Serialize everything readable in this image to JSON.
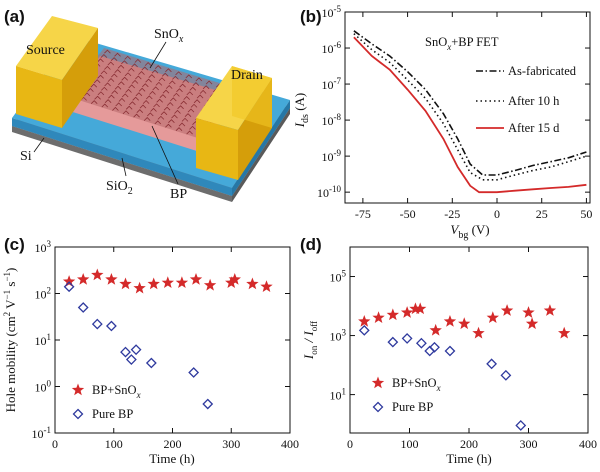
{
  "panels": {
    "a": {
      "label": "(a)",
      "labels": {
        "source": "Source",
        "drain": "Drain",
        "snox": "SnO",
        "snox_sub": "x",
        "si": "Si",
        "sio2": "SiO",
        "sio2_sub": "2",
        "bp": "BP"
      },
      "colors": {
        "electrode": "#f2c419",
        "substrate": "#45a9d9",
        "channel": "#e18a8a",
        "base": "#8b8b8b",
        "snox_film": "#b5676a"
      }
    },
    "b": {
      "label": "(b)",
      "title": "SnO",
      "title_sub": "x",
      "title_suffix": "+BP FET",
      "xlabel": "V",
      "xlabel_sub": "bg",
      "xlabel_unit": " (V)",
      "ylabel": "I",
      "ylabel_sub": "ds",
      "ylabel_unit": " (A)",
      "xticks": [
        "-75",
        "-50",
        "-25",
        "0",
        "25",
        "50"
      ],
      "yticks": [
        {
          "base": "10",
          "exp": "-5"
        },
        {
          "base": "10",
          "exp": "-6"
        },
        {
          "base": "10",
          "exp": "-7"
        },
        {
          "base": "10",
          "exp": "-8"
        },
        {
          "base": "10",
          "exp": "-9"
        },
        {
          "base": "10",
          "exp": "-10"
        }
      ],
      "legend": [
        "As-fabricated",
        "After 10 h",
        "After 15 d"
      ]
    },
    "c": {
      "label": "(c)",
      "ylabel": "Hole mobility (cm",
      "ylabel_sup1": "2",
      "ylabel_mid": " V",
      "ylabel_sup2": "−1",
      "ylabel_mid2": " s",
      "ylabel_sup3": "−1",
      "ylabel_end": ")",
      "xlabel": "Time (h)",
      "xticks": [
        "0",
        "100",
        "200",
        "300",
        "400"
      ],
      "yticks": [
        {
          "base": "10",
          "exp": "3"
        },
        {
          "base": "10",
          "exp": "2"
        },
        {
          "base": "10",
          "exp": "1"
        },
        {
          "base": "10",
          "exp": "0"
        },
        {
          "base": "10",
          "exp": "-1"
        }
      ],
      "legend": [
        "BP+SnO",
        "Pure BP"
      ],
      "legend_sub": "x"
    },
    "d": {
      "label": "(d)",
      "ylabel": "I",
      "ylabel_sub": "on",
      "ylabel_mid": " / I",
      "ylabel_sub2": "off",
      "xlabel": "Time (h)",
      "xticks": [
        "0",
        "100",
        "200",
        "300",
        "400"
      ],
      "yticks": [
        {
          "base": "10",
          "exp": "5"
        },
        {
          "base": "10",
          "exp": "3"
        },
        {
          "base": "10",
          "exp": "1"
        }
      ],
      "legend": [
        "BP+SnO",
        "Pure BP"
      ],
      "legend_sub": "x"
    }
  },
  "colors": {
    "red": "#d42a2a",
    "blue": "#2f3a9e",
    "black": "#111111"
  },
  "chart_data": [
    {
      "panel": "b",
      "type": "line",
      "yscale": "log",
      "xlim": [
        -85,
        52
      ],
      "ylim": [
        5e-11,
        1e-05
      ],
      "series": [
        {
          "name": "As-fabricated",
          "style": "dashdot",
          "color": "#111111",
          "x": [
            -80,
            -70,
            -60,
            -50,
            -40,
            -30,
            -22,
            -15,
            -8,
            0,
            10,
            20,
            30,
            40,
            50
          ],
          "y": [
            3e-06,
            1.3e-06,
            6e-07,
            2.2e-07,
            7e-08,
            1.5e-08,
            3e-09,
            6e-10,
            3e-10,
            3e-10,
            4e-10,
            5.5e-10,
            7e-10,
            9e-10,
            1.3e-09
          ]
        },
        {
          "name": "After 10 h",
          "style": "dotted",
          "color": "#111111",
          "x": [
            -80,
            -70,
            -60,
            -50,
            -40,
            -30,
            -22,
            -15,
            -8,
            0,
            10,
            20,
            30,
            40,
            50
          ],
          "y": [
            2.5e-06,
            9e-07,
            4e-07,
            1.3e-07,
            4e-08,
            8e-09,
            1.5e-09,
            3.5e-10,
            2.2e-10,
            2.2e-10,
            3e-10,
            4e-10,
            5e-10,
            7e-10,
            1e-09
          ]
        },
        {
          "name": "After 15 d",
          "style": "solid",
          "color": "#d42a2a",
          "x": [
            -80,
            -70,
            -60,
            -50,
            -40,
            -30,
            -22,
            -15,
            -10,
            -5,
            0,
            10,
            20,
            30,
            40,
            50
          ],
          "y": [
            2e-06,
            6e-07,
            2.5e-07,
            7e-08,
            1.8e-08,
            3e-09,
            5e-10,
            1.5e-10,
            1e-10,
            1e-10,
            1e-10,
            1.1e-10,
            1.2e-10,
            1.3e-10,
            1.4e-10,
            1.6e-10
          ]
        }
      ]
    },
    {
      "panel": "c",
      "type": "scatter",
      "yscale": "log",
      "xlim": [
        0,
        400
      ],
      "ylim": [
        0.1,
        1000
      ],
      "series": [
        {
          "name": "BP+SnOx",
          "marker": "star",
          "color": "#d42a2a",
          "x": [
            24,
            48,
            72,
            96,
            120,
            144,
            168,
            192,
            216,
            240,
            264,
            300,
            306,
            336,
            360
          ],
          "y": [
            180,
            200,
            250,
            200,
            160,
            130,
            160,
            170,
            170,
            200,
            150,
            170,
            200,
            160,
            140
          ]
        },
        {
          "name": "Pure BP",
          "marker": "diamond",
          "color": "#2f3a9e",
          "x": [
            24,
            48,
            72,
            96,
            120,
            130,
            138,
            164,
            236,
            260
          ],
          "y": [
            140,
            50,
            22,
            20,
            5.5,
            3.8,
            6.2,
            3.2,
            2.0,
            0.42
          ]
        }
      ]
    },
    {
      "panel": "d",
      "type": "scatter",
      "yscale": "log",
      "xlim": [
        0,
        400
      ],
      "ylim": [
        0.5,
        1000000
      ],
      "series": [
        {
          "name": "BP+SnOx",
          "marker": "star",
          "color": "#d42a2a",
          "x": [
            24,
            48,
            72,
            96,
            110,
            118,
            144,
            168,
            192,
            216,
            240,
            264,
            300,
            306,
            336,
            360
          ],
          "y": [
            3000,
            4000,
            5000,
            6000,
            8000,
            8000,
            1500,
            3000,
            2500,
            1200,
            4000,
            7000,
            6000,
            2500,
            7000,
            1200
          ]
        },
        {
          "name": "Pure BP",
          "marker": "diamond",
          "color": "#2f3a9e",
          "x": [
            24,
            72,
            96,
            120,
            134,
            142,
            168,
            238,
            262,
            287
          ],
          "y": [
            1500,
            600,
            800,
            550,
            300,
            400,
            300,
            110,
            45,
            0.9
          ]
        }
      ]
    }
  ]
}
